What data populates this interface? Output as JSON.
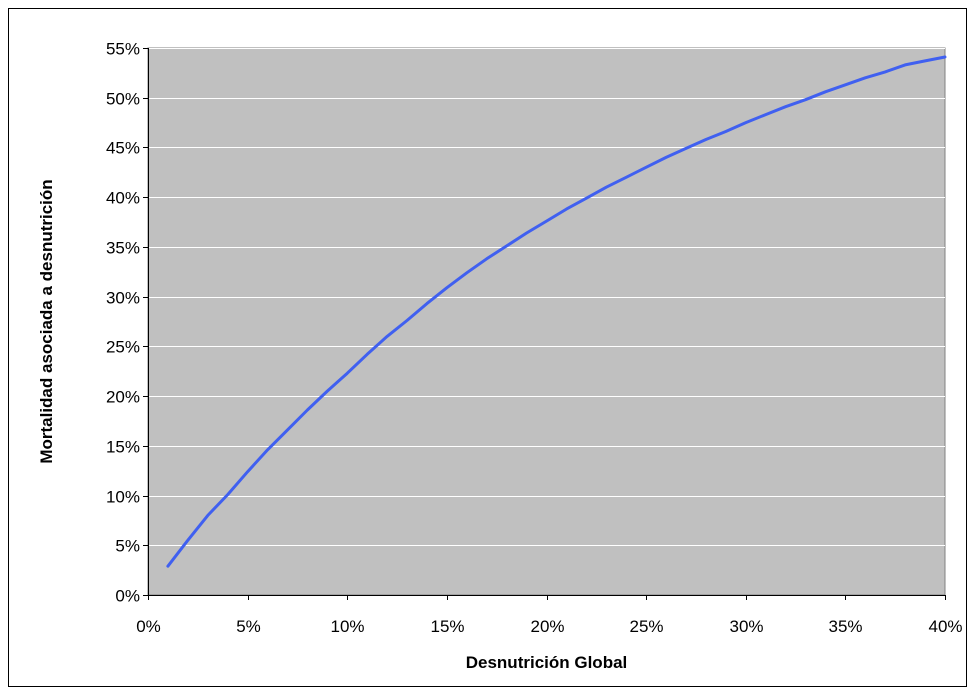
{
  "chart_data": {
    "type": "line",
    "title": "",
    "xlabel": "Desnutrición Global",
    "ylabel": "Mortalidad asociada a desnutrición",
    "xlim": [
      0,
      40
    ],
    "ylim": [
      0,
      55
    ],
    "x_ticks": [
      0,
      5,
      10,
      15,
      20,
      25,
      30,
      35,
      40
    ],
    "y_ticks": [
      0,
      5,
      10,
      15,
      20,
      25,
      30,
      35,
      40,
      45,
      50,
      55
    ],
    "x_tick_labels": [
      "0%",
      "5%",
      "10%",
      "15%",
      "20%",
      "25%",
      "30%",
      "35%",
      "40%"
    ],
    "y_tick_labels": [
      "0%",
      "5%",
      "10%",
      "15%",
      "20%",
      "25%",
      "30%",
      "35%",
      "40%",
      "45%",
      "50%",
      "55%"
    ],
    "grid": true,
    "legend": "none",
    "plot_background": "#c0c0c0",
    "series": [
      {
        "color": "#4060f0",
        "x": [
          1,
          2,
          3,
          4,
          5,
          6,
          7,
          8,
          9,
          10,
          11,
          12,
          13,
          14,
          15,
          16,
          17,
          18,
          19,
          20,
          21,
          22,
          23,
          24,
          25,
          26,
          27,
          28,
          29,
          30,
          31,
          32,
          33,
          34,
          35,
          36,
          37,
          38,
          39,
          40
        ],
        "y": [
          2.9,
          5.5,
          8.0,
          10.1,
          12.4,
          14.6,
          16.6,
          18.6,
          20.5,
          22.3,
          24.2,
          26.0,
          27.6,
          29.3,
          30.9,
          32.4,
          33.8,
          35.1,
          36.4,
          37.6,
          38.8,
          39.9,
          41.0,
          42.0,
          43.0,
          44.0,
          44.9,
          45.8,
          46.6,
          47.5,
          48.3,
          49.1,
          49.8,
          50.6,
          51.3,
          52.0,
          52.6,
          53.3,
          53.7,
          54.1
        ]
      }
    ]
  }
}
